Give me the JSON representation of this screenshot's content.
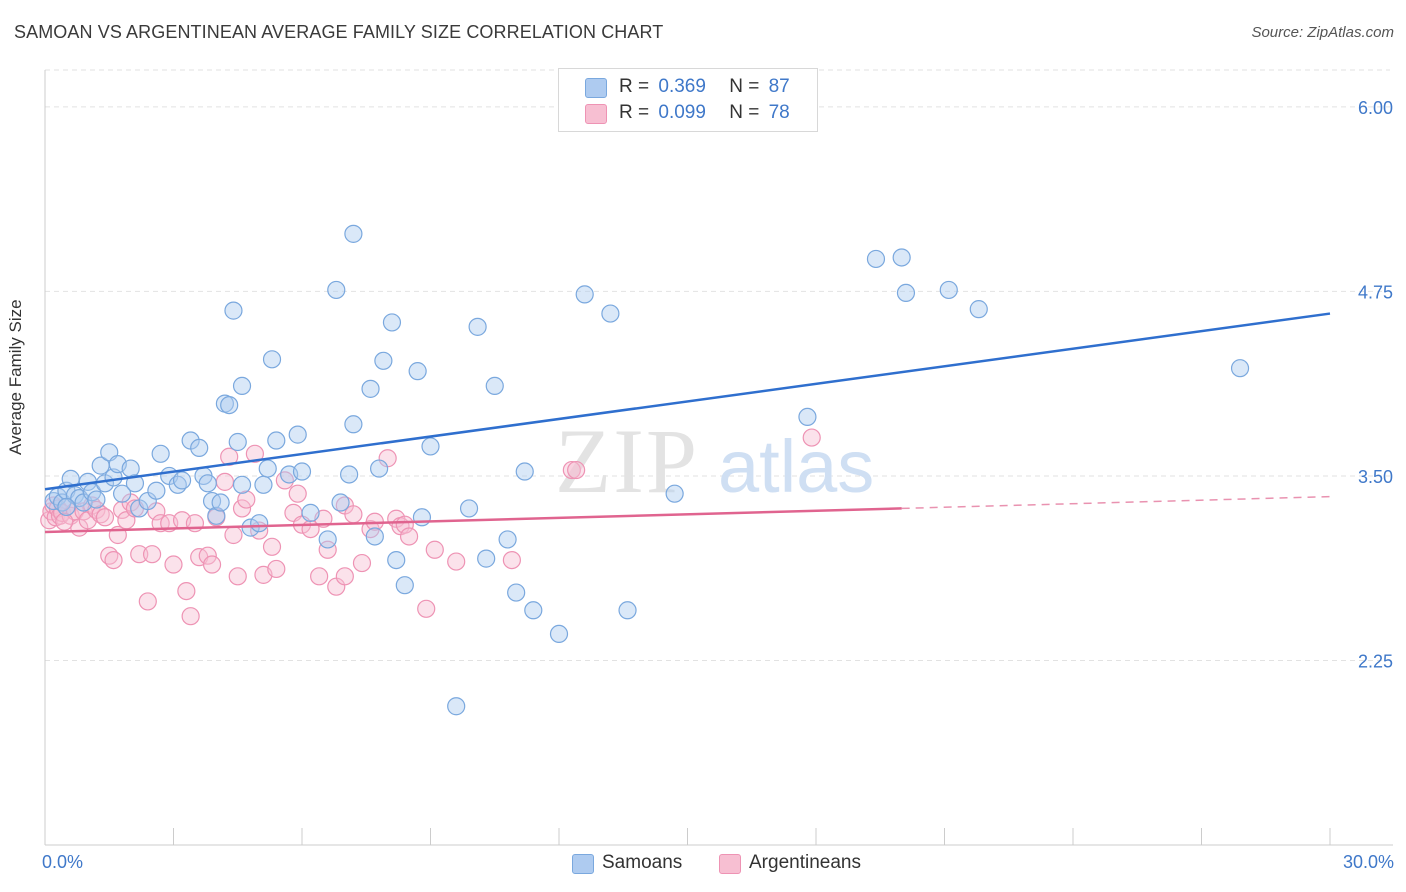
{
  "header": {
    "title": "SAMOAN VS ARGENTINEAN AVERAGE FAMILY SIZE CORRELATION CHART",
    "source": "Source: ZipAtlas.com"
  },
  "legend": {
    "samoans": {
      "r_label": "R =",
      "r_value": "0.369",
      "n_label": "N =",
      "n_value": "87"
    },
    "argentineans": {
      "r_label": "R =",
      "r_value": "0.099",
      "n_label": "N =",
      "n_value": "78"
    }
  },
  "colors": {
    "samoans_fill": "#aecbf0",
    "samoans_stroke": "#7aa8de",
    "samoans_line": "#2f6fce",
    "argentineans_fill": "#f7bfd2",
    "argentineans_stroke": "#ee93b4",
    "argentineans_line": "#e0648f",
    "axis_label": "#3f78c9"
  },
  "chart_data": {
    "type": "scatter",
    "title": "SAMOAN VS ARGENTINEAN AVERAGE FAMILY SIZE CORRELATION CHART",
    "xlabel": "",
    "ylabel": "Average Family Size",
    "xlim": [
      0,
      30
    ],
    "ylim": [
      1.0,
      6.25
    ],
    "x_tick_labels": [
      "0.0%",
      "30.0%"
    ],
    "y_ticks": [
      2.25,
      3.5,
      4.75,
      6.0
    ],
    "y_tick_labels": [
      "2.25",
      "3.50",
      "4.75",
      "6.00"
    ],
    "grid": true,
    "legend_position": "top-center",
    "watermark": "ZIPatlas",
    "series": [
      {
        "name": "Samoans",
        "r": 0.369,
        "n": 87,
        "trend": {
          "x": [
            0,
            30
          ],
          "y": [
            3.41,
            4.6
          ]
        },
        "points": [
          [
            0.2,
            3.33
          ],
          [
            0.3,
            3.36
          ],
          [
            0.4,
            3.32
          ],
          [
            0.5,
            3.4
          ],
          [
            0.6,
            3.48
          ],
          [
            0.7,
            3.37
          ],
          [
            0.8,
            3.35
          ],
          [
            0.9,
            3.32
          ],
          [
            1.0,
            3.46
          ],
          [
            1.1,
            3.39
          ],
          [
            1.3,
            3.57
          ],
          [
            1.4,
            3.45
          ],
          [
            1.5,
            3.66
          ],
          [
            1.6,
            3.49
          ],
          [
            1.7,
            3.58
          ],
          [
            1.8,
            3.38
          ],
          [
            2.0,
            3.55
          ],
          [
            2.1,
            3.45
          ],
          [
            2.2,
            3.28
          ],
          [
            2.4,
            3.33
          ],
          [
            2.6,
            3.4
          ],
          [
            2.7,
            3.65
          ],
          [
            2.9,
            3.5
          ],
          [
            3.1,
            3.44
          ],
          [
            3.2,
            3.47
          ],
          [
            3.4,
            3.74
          ],
          [
            3.6,
            3.69
          ],
          [
            3.7,
            3.5
          ],
          [
            3.8,
            3.45
          ],
          [
            3.9,
            3.33
          ],
          [
            4.0,
            3.23
          ],
          [
            4.1,
            3.32
          ],
          [
            4.2,
            3.99
          ],
          [
            4.3,
            3.98
          ],
          [
            4.4,
            4.62
          ],
          [
            4.5,
            3.73
          ],
          [
            4.6,
            3.44
          ],
          [
            4.6,
            4.11
          ],
          [
            4.8,
            3.15
          ],
          [
            5.0,
            3.18
          ],
          [
            5.1,
            3.44
          ],
          [
            5.2,
            3.55
          ],
          [
            5.3,
            4.29
          ],
          [
            5.4,
            3.74
          ],
          [
            5.7,
            3.51
          ],
          [
            5.9,
            3.78
          ],
          [
            6.0,
            3.53
          ],
          [
            6.2,
            3.25
          ],
          [
            6.6,
            3.07
          ],
          [
            6.8,
            4.76
          ],
          [
            6.9,
            3.32
          ],
          [
            7.1,
            3.51
          ],
          [
            7.2,
            5.14
          ],
          [
            7.2,
            3.85
          ],
          [
            7.6,
            4.09
          ],
          [
            7.7,
            3.09
          ],
          [
            7.8,
            3.55
          ],
          [
            7.9,
            4.28
          ],
          [
            8.1,
            4.54
          ],
          [
            8.2,
            2.93
          ],
          [
            8.4,
            2.76
          ],
          [
            8.7,
            4.21
          ],
          [
            8.8,
            3.22
          ],
          [
            9.0,
            3.7
          ],
          [
            9.6,
            1.94
          ],
          [
            9.9,
            3.28
          ],
          [
            10.1,
            4.51
          ],
          [
            10.3,
            2.94
          ],
          [
            10.5,
            4.11
          ],
          [
            10.8,
            3.07
          ],
          [
            11.0,
            2.71
          ],
          [
            11.2,
            3.53
          ],
          [
            11.4,
            2.59
          ],
          [
            12.0,
            2.43
          ],
          [
            12.6,
            4.73
          ],
          [
            13.2,
            4.6
          ],
          [
            13.6,
            2.59
          ],
          [
            14.7,
            3.38
          ],
          [
            17.8,
            3.9
          ],
          [
            19.4,
            4.97
          ],
          [
            20.0,
            4.98
          ],
          [
            20.1,
            4.74
          ],
          [
            21.1,
            4.76
          ],
          [
            21.8,
            4.63
          ],
          [
            27.9,
            4.23
          ],
          [
            0.5,
            3.29
          ],
          [
            1.2,
            3.34
          ]
        ]
      },
      {
        "name": "Argentineans",
        "r": 0.099,
        "n": 78,
        "trend": {
          "x": [
            0,
            20
          ],
          "y": [
            3.12,
            3.28
          ]
        },
        "trend_dashed": {
          "x": [
            20,
            30
          ],
          "y": [
            3.28,
            3.36
          ]
        },
        "points": [
          [
            0.1,
            3.2
          ],
          [
            0.15,
            3.26
          ],
          [
            0.2,
            3.3
          ],
          [
            0.25,
            3.22
          ],
          [
            0.3,
            3.28
          ],
          [
            0.35,
            3.23
          ],
          [
            0.4,
            3.25
          ],
          [
            0.5,
            3.29
          ],
          [
            0.6,
            3.23
          ],
          [
            0.7,
            3.26
          ],
          [
            0.8,
            3.15
          ],
          [
            0.9,
            3.26
          ],
          [
            1.0,
            3.2
          ],
          [
            1.1,
            3.3
          ],
          [
            1.2,
            3.27
          ],
          [
            1.3,
            3.24
          ],
          [
            1.5,
            2.96
          ],
          [
            1.6,
            2.93
          ],
          [
            1.7,
            3.1
          ],
          [
            1.8,
            3.27
          ],
          [
            1.9,
            3.2
          ],
          [
            2.0,
            3.32
          ],
          [
            2.1,
            3.28
          ],
          [
            2.2,
            2.97
          ],
          [
            2.4,
            2.65
          ],
          [
            2.5,
            2.97
          ],
          [
            2.6,
            3.26
          ],
          [
            2.7,
            3.18
          ],
          [
            2.9,
            3.18
          ],
          [
            3.0,
            2.9
          ],
          [
            3.2,
            3.2
          ],
          [
            3.3,
            2.72
          ],
          [
            3.4,
            2.55
          ],
          [
            3.5,
            3.18
          ],
          [
            3.6,
            2.95
          ],
          [
            3.8,
            2.96
          ],
          [
            3.9,
            2.9
          ],
          [
            4.0,
            3.22
          ],
          [
            4.2,
            3.46
          ],
          [
            4.3,
            3.63
          ],
          [
            4.4,
            3.1
          ],
          [
            4.5,
            2.82
          ],
          [
            4.6,
            3.28
          ],
          [
            4.7,
            3.34
          ],
          [
            4.9,
            3.65
          ],
          [
            5.0,
            3.13
          ],
          [
            5.1,
            2.83
          ],
          [
            5.3,
            3.02
          ],
          [
            5.4,
            2.87
          ],
          [
            5.6,
            3.47
          ],
          [
            5.8,
            3.25
          ],
          [
            5.9,
            3.38
          ],
          [
            6.0,
            3.17
          ],
          [
            6.2,
            3.14
          ],
          [
            6.4,
            2.82
          ],
          [
            6.5,
            3.21
          ],
          [
            6.6,
            3.0
          ],
          [
            6.8,
            2.75
          ],
          [
            7.0,
            2.82
          ],
          [
            7.0,
            3.3
          ],
          [
            7.2,
            3.24
          ],
          [
            7.4,
            2.91
          ],
          [
            7.6,
            3.14
          ],
          [
            7.7,
            3.19
          ],
          [
            8.0,
            3.62
          ],
          [
            8.2,
            3.21
          ],
          [
            8.3,
            3.16
          ],
          [
            8.4,
            3.17
          ],
          [
            8.5,
            3.09
          ],
          [
            8.9,
            2.6
          ],
          [
            9.1,
            3.0
          ],
          [
            9.6,
            2.92
          ],
          [
            10.9,
            2.93
          ],
          [
            12.3,
            3.54
          ],
          [
            12.4,
            3.54
          ],
          [
            17.9,
            3.76
          ],
          [
            1.4,
            3.22
          ],
          [
            0.45,
            3.19
          ]
        ]
      }
    ]
  },
  "bottom_legend": {
    "samoans": "Samoans",
    "argentineans": "Argentineans"
  }
}
